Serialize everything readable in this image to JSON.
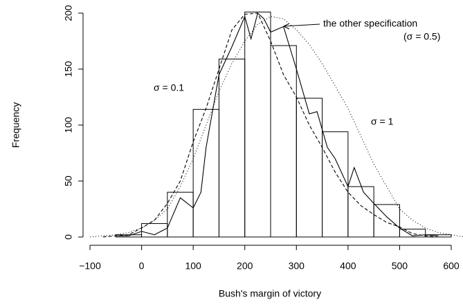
{
  "chart_data": {
    "type": "histogram",
    "xlabel": "Bush's margin of victory",
    "ylabel": "Frequency",
    "bins": [
      -50,
      0,
      50,
      100,
      150,
      200,
      250,
      300,
      350,
      400,
      450,
      500,
      550,
      600
    ],
    "counts": [
      2,
      12,
      40,
      114,
      159,
      201,
      171,
      124,
      94,
      45,
      29,
      7,
      2
    ],
    "series": [
      {
        "name": "the other specification",
        "color": "#000",
        "dash": "solid",
        "x": [
          -50,
          -25,
          0,
          25,
          50,
          75,
          100,
          115,
          125,
          150,
          175,
          200,
          212,
          225,
          237,
          250,
          275,
          300,
          325,
          340,
          360,
          375,
          400,
          412,
          430,
          450,
          475,
          500,
          525,
          550,
          575
        ],
        "values": [
          1,
          1,
          5,
          2,
          8,
          35,
          26,
          40,
          80,
          145,
          170,
          197,
          177,
          200,
          195,
          183,
          188,
          150,
          110,
          112,
          80,
          70,
          45,
          62,
          40,
          30,
          18,
          8,
          1,
          2,
          1
        ]
      },
      {
        "name": "σ = 0.1",
        "color": "#000",
        "dash": "dashed",
        "x": [
          -75,
          -50,
          -25,
          0,
          25,
          50,
          75,
          100,
          125,
          150,
          175,
          200,
          225,
          250,
          275,
          300,
          325,
          350,
          375,
          400,
          425,
          450,
          475,
          500,
          525,
          550,
          575
        ],
        "values": [
          0,
          1,
          2,
          8,
          15,
          30,
          50,
          85,
          115,
          150,
          185,
          199,
          200,
          175,
          145,
          125,
          100,
          80,
          58,
          40,
          28,
          20,
          13,
          9,
          3,
          1,
          0
        ]
      },
      {
        "name": "σ = 1",
        "color": "#000",
        "dash": "dotted",
        "x": [
          -100,
          -75,
          -50,
          -25,
          0,
          25,
          50,
          75,
          100,
          125,
          150,
          175,
          200,
          225,
          250,
          275,
          300,
          325,
          350,
          375,
          400,
          425,
          450,
          475,
          500,
          525,
          550,
          575,
          600,
          625
        ],
        "values": [
          0,
          1,
          2,
          4,
          8,
          15,
          25,
          45,
          70,
          100,
          130,
          155,
          175,
          190,
          197,
          195,
          185,
          172,
          155,
          135,
          115,
          90,
          65,
          45,
          25,
          15,
          8,
          4,
          2,
          0
        ]
      }
    ],
    "annotations": [
      "σ = 0.1",
      "σ = 1",
      "the other specification",
      "(σ = 0.5)"
    ],
    "xlim": [
      -100,
      600
    ],
    "xticks": [
      {
        "value": -100,
        "label": "−100"
      },
      0,
      100,
      200,
      300,
      400,
      500,
      600
    ],
    "ylim": [
      0,
      200
    ],
    "yticks": [
      0,
      50,
      100,
      150,
      200
    ]
  }
}
